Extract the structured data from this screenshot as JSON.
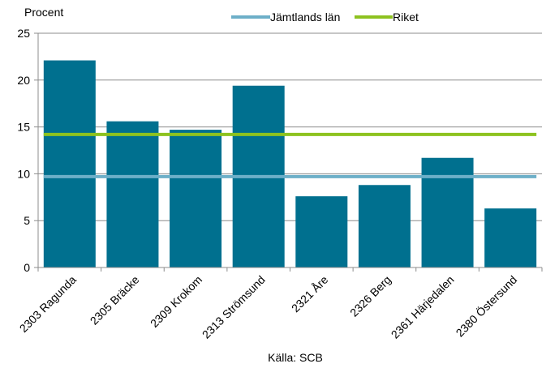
{
  "chart_data": {
    "type": "bar",
    "title": "",
    "ylabel": "Procent",
    "xlabel": "",
    "source": "Källa: SCB",
    "ylim": [
      0,
      25
    ],
    "yticks": [
      0,
      5,
      10,
      15,
      20,
      25
    ],
    "grid": true,
    "legend_position": "top",
    "categories": [
      "2303 Ragunda",
      "2305 Bräcke",
      "2309 Krokom",
      "2313 Strömsund",
      "2321 Åre",
      "2326 Berg",
      "2361 Härjedalen",
      "2380 Östersund"
    ],
    "values": [
      22.1,
      15.6,
      14.7,
      19.4,
      7.6,
      8.8,
      11.7,
      6.3
    ],
    "bar_color": "#00708F",
    "series": [
      {
        "name": "Jämtlands län",
        "type": "line",
        "value": 9.7,
        "color": "#6DAFC8"
      },
      {
        "name": "Riket",
        "type": "line",
        "value": 14.2,
        "color": "#8DC21F"
      }
    ]
  }
}
